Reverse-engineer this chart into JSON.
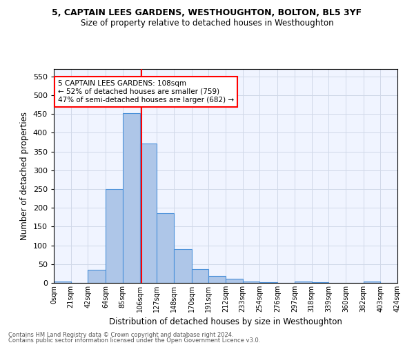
{
  "title1": "5, CAPTAIN LEES GARDENS, WESTHOUGHTON, BOLTON, BL5 3YF",
  "title2": "Size of property relative to detached houses in Westhoughton",
  "xlabel": "Distribution of detached houses by size in Westhoughton",
  "ylabel": "Number of detached properties",
  "bin_labels": [
    "0sqm",
    "21sqm",
    "42sqm",
    "64sqm",
    "85sqm",
    "106sqm",
    "127sqm",
    "148sqm",
    "170sqm",
    "191sqm",
    "212sqm",
    "233sqm",
    "254sqm",
    "276sqm",
    "297sqm",
    "318sqm",
    "339sqm",
    "360sqm",
    "382sqm",
    "403sqm",
    "424sqm"
  ],
  "bin_edges": [
    0,
    21,
    42,
    64,
    85,
    106,
    127,
    148,
    170,
    191,
    212,
    233,
    254,
    276,
    297,
    318,
    339,
    360,
    382,
    403,
    424
  ],
  "bar_heights": [
    3,
    0,
    35,
    250,
    452,
    372,
    186,
    90,
    37,
    19,
    11,
    4,
    1,
    0,
    3,
    1,
    0,
    0,
    3,
    0,
    3
  ],
  "bar_color": "#aec6e8",
  "bar_edge_color": "#4a90d9",
  "property_line_x": 108,
  "ylim": [
    0,
    570
  ],
  "yticks": [
    0,
    50,
    100,
    150,
    200,
    250,
    300,
    350,
    400,
    450,
    500,
    550
  ],
  "annotation_text": "5 CAPTAIN LEES GARDENS: 108sqm\n← 52% of detached houses are smaller (759)\n47% of semi-detached houses are larger (682) →",
  "footnote1": "Contains HM Land Registry data © Crown copyright and database right 2024.",
  "footnote2": "Contains public sector information licensed under the Open Government Licence v3.0.",
  "grid_color": "#d0d8e8",
  "background_color": "#f0f4ff"
}
